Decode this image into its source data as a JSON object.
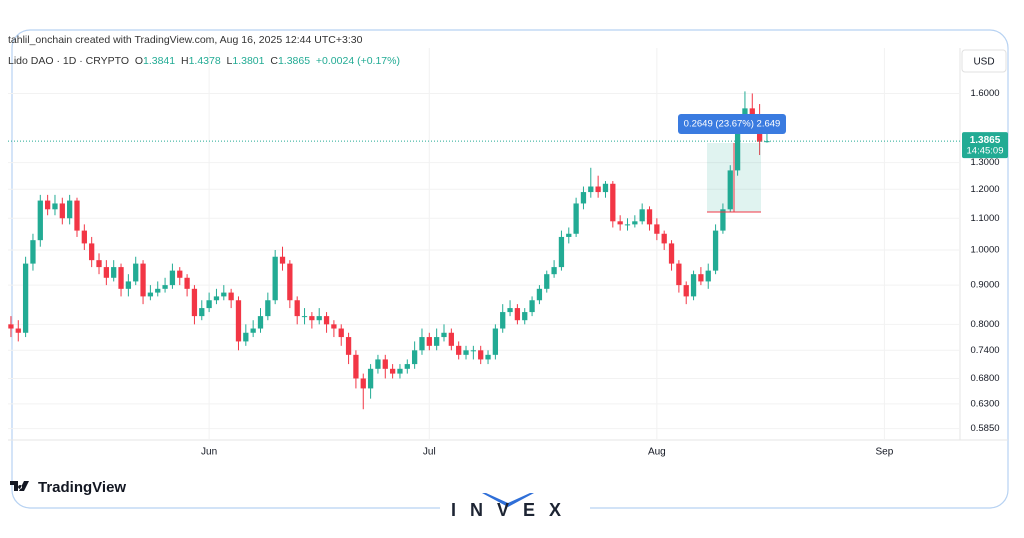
{
  "header": {
    "attribution": "tahlil_onchain created with TradingView.com, Aug 16, 2025 12:44 UTC+3:30"
  },
  "chart_data": {
    "type": "candlestick",
    "symbol_label": "Lido DAO · 1D · CRYPTO",
    "ohlc_prefixes": [
      "O",
      "H",
      "L",
      "C"
    ],
    "change_label": "+0.0024 (+0.17%)",
    "currency": "USD",
    "countdown": "14:45:09",
    "measure_label": "0.2649 (23.67%) 2.649",
    "up_color": "#22ab94",
    "down_color": "#f23645",
    "log_scale": true,
    "grid": true,
    "xlim": [
      124.6,
      254.3
    ],
    "xticks": [
      {
        "value": 152,
        "label": "Jun"
      },
      {
        "value": 182,
        "label": "Jul"
      },
      {
        "value": 213,
        "label": "Aug"
      },
      {
        "value": 244,
        "label": "Sep"
      }
    ],
    "ylim": [
      0.5653,
      1.823
    ],
    "yticks": [
      {
        "value": 1.6,
        "label": "1.6000"
      },
      {
        "value": 1.3,
        "label": "1.3000"
      },
      {
        "value": 1.2,
        "label": "1.2000"
      },
      {
        "value": 1.1,
        "label": "1.1000"
      },
      {
        "value": 1.0,
        "label": "1.0000"
      },
      {
        "value": 0.9,
        "label": "0.9000"
      },
      {
        "value": 0.8,
        "label": "0.8000"
      },
      {
        "value": 0.74,
        "label": "0.7400"
      },
      {
        "value": 0.68,
        "label": "0.6800"
      },
      {
        "value": 0.63,
        "label": "0.6300"
      },
      {
        "value": 0.585,
        "label": "0.5850"
      }
    ],
    "x": [
      125,
      126,
      127,
      128,
      129,
      130,
      131,
      132,
      133,
      134,
      135,
      136,
      137,
      138,
      139,
      140,
      141,
      142,
      143,
      144,
      145,
      146,
      147,
      148,
      149,
      150,
      151,
      152,
      153,
      154,
      155,
      156,
      157,
      158,
      159,
      160,
      161,
      162,
      163,
      164,
      165,
      166,
      167,
      168,
      169,
      170,
      171,
      172,
      173,
      174,
      175,
      176,
      177,
      178,
      179,
      180,
      181,
      182,
      183,
      184,
      185,
      186,
      187,
      188,
      189,
      190,
      191,
      192,
      193,
      194,
      195,
      196,
      197,
      198,
      199,
      200,
      201,
      202,
      203,
      204,
      205,
      206,
      207,
      208,
      209,
      210,
      211,
      212,
      213,
      214,
      215,
      216,
      217,
      218,
      219,
      220,
      221,
      222,
      223,
      224,
      225,
      226,
      227,
      228
    ],
    "open": [
      0.8,
      0.79,
      0.78,
      0.96,
      1.03,
      1.16,
      1.13,
      1.15,
      1.1,
      1.16,
      1.06,
      1.02,
      0.97,
      0.95,
      0.92,
      0.95,
      0.89,
      0.91,
      0.96,
      0.87,
      0.88,
      0.89,
      0.9,
      0.94,
      0.92,
      0.89,
      0.82,
      0.84,
      0.86,
      0.87,
      0.88,
      0.86,
      0.76,
      0.78,
      0.79,
      0.82,
      0.86,
      0.98,
      0.96,
      0.86,
      0.82,
      0.82,
      0.81,
      0.82,
      0.8,
      0.79,
      0.77,
      0.73,
      0.68,
      0.66,
      0.7,
      0.72,
      0.7,
      0.69,
      0.7,
      0.71,
      0.74,
      0.77,
      0.75,
      0.77,
      0.78,
      0.75,
      0.73,
      0.74,
      0.74,
      0.72,
      0.73,
      0.79,
      0.83,
      0.84,
      0.81,
      0.83,
      0.86,
      0.89,
      0.93,
      0.95,
      1.04,
      1.05,
      1.15,
      1.19,
      1.21,
      1.19,
      1.22,
      1.09,
      1.08,
      1.08,
      1.09,
      1.13,
      1.08,
      1.05,
      1.02,
      0.96,
      0.9,
      0.87,
      0.93,
      0.91,
      0.94,
      1.06,
      1.13,
      1.27,
      1.45,
      1.53,
      1.5,
      1.3841
    ],
    "high": [
      0.82,
      0.81,
      0.98,
      1.05,
      1.18,
      1.18,
      1.18,
      1.17,
      1.18,
      1.17,
      1.08,
      1.04,
      0.99,
      0.97,
      0.97,
      0.96,
      0.93,
      0.98,
      0.97,
      0.9,
      0.91,
      0.92,
      0.96,
      0.95,
      0.93,
      0.9,
      0.86,
      0.88,
      0.89,
      0.9,
      0.89,
      0.87,
      0.8,
      0.81,
      0.84,
      0.88,
      1.0,
      1.01,
      0.97,
      0.87,
      0.84,
      0.83,
      0.84,
      0.83,
      0.81,
      0.8,
      0.78,
      0.74,
      0.69,
      0.71,
      0.73,
      0.73,
      0.71,
      0.71,
      0.72,
      0.76,
      0.79,
      0.78,
      0.79,
      0.8,
      0.79,
      0.76,
      0.75,
      0.75,
      0.75,
      0.74,
      0.8,
      0.85,
      0.86,
      0.85,
      0.84,
      0.87,
      0.9,
      0.94,
      0.97,
      1.06,
      1.07,
      1.17,
      1.21,
      1.28,
      1.25,
      1.23,
      1.23,
      1.11,
      1.1,
      1.11,
      1.15,
      1.14,
      1.1,
      1.06,
      1.03,
      0.97,
      0.91,
      0.94,
      0.95,
      0.96,
      1.08,
      1.15,
      1.29,
      1.48,
      1.61,
      1.6,
      1.55,
      1.4378
    ],
    "low": [
      0.77,
      0.76,
      0.77,
      0.94,
      1.01,
      1.11,
      1.11,
      1.08,
      1.08,
      1.04,
      1.0,
      0.95,
      0.93,
      0.9,
      0.91,
      0.87,
      0.87,
      0.9,
      0.85,
      0.86,
      0.87,
      0.88,
      0.89,
      0.9,
      0.87,
      0.8,
      0.81,
      0.83,
      0.85,
      0.86,
      0.84,
      0.74,
      0.75,
      0.77,
      0.78,
      0.81,
      0.85,
      0.94,
      0.84,
      0.8,
      0.8,
      0.79,
      0.8,
      0.78,
      0.77,
      0.75,
      0.71,
      0.66,
      0.62,
      0.64,
      0.69,
      0.68,
      0.68,
      0.68,
      0.69,
      0.7,
      0.73,
      0.74,
      0.74,
      0.76,
      0.74,
      0.72,
      0.72,
      0.72,
      0.71,
      0.71,
      0.72,
      0.78,
      0.82,
      0.8,
      0.8,
      0.82,
      0.85,
      0.88,
      0.92,
      0.94,
      1.02,
      1.04,
      1.13,
      1.17,
      1.17,
      1.17,
      1.07,
      1.06,
      1.06,
      1.07,
      1.08,
      1.06,
      1.03,
      1.0,
      0.94,
      0.88,
      0.85,
      0.86,
      0.9,
      0.89,
      0.93,
      1.05,
      1.12,
      1.25,
      1.43,
      1.47,
      1.33,
      1.3801
    ],
    "close": [
      0.79,
      0.78,
      0.96,
      1.03,
      1.16,
      1.13,
      1.15,
      1.1,
      1.16,
      1.06,
      1.02,
      0.97,
      0.95,
      0.92,
      0.95,
      0.89,
      0.91,
      0.96,
      0.87,
      0.88,
      0.89,
      0.9,
      0.94,
      0.92,
      0.89,
      0.82,
      0.84,
      0.86,
      0.87,
      0.88,
      0.86,
      0.76,
      0.78,
      0.79,
      0.82,
      0.86,
      0.98,
      0.96,
      0.86,
      0.82,
      0.82,
      0.81,
      0.82,
      0.8,
      0.79,
      0.77,
      0.73,
      0.68,
      0.66,
      0.7,
      0.72,
      0.7,
      0.69,
      0.7,
      0.71,
      0.74,
      0.77,
      0.75,
      0.77,
      0.78,
      0.75,
      0.73,
      0.74,
      0.74,
      0.72,
      0.73,
      0.79,
      0.83,
      0.84,
      0.81,
      0.83,
      0.86,
      0.89,
      0.93,
      0.95,
      1.04,
      1.05,
      1.15,
      1.19,
      1.21,
      1.19,
      1.22,
      1.09,
      1.08,
      1.08,
      1.09,
      1.13,
      1.08,
      1.05,
      1.02,
      0.96,
      0.9,
      0.87,
      0.93,
      0.91,
      0.94,
      1.06,
      1.13,
      1.27,
      1.45,
      1.53,
      1.5,
      1.3841,
      1.3865
    ]
  },
  "footer": {
    "brand": "TradingView",
    "watermark": "INVEX"
  }
}
